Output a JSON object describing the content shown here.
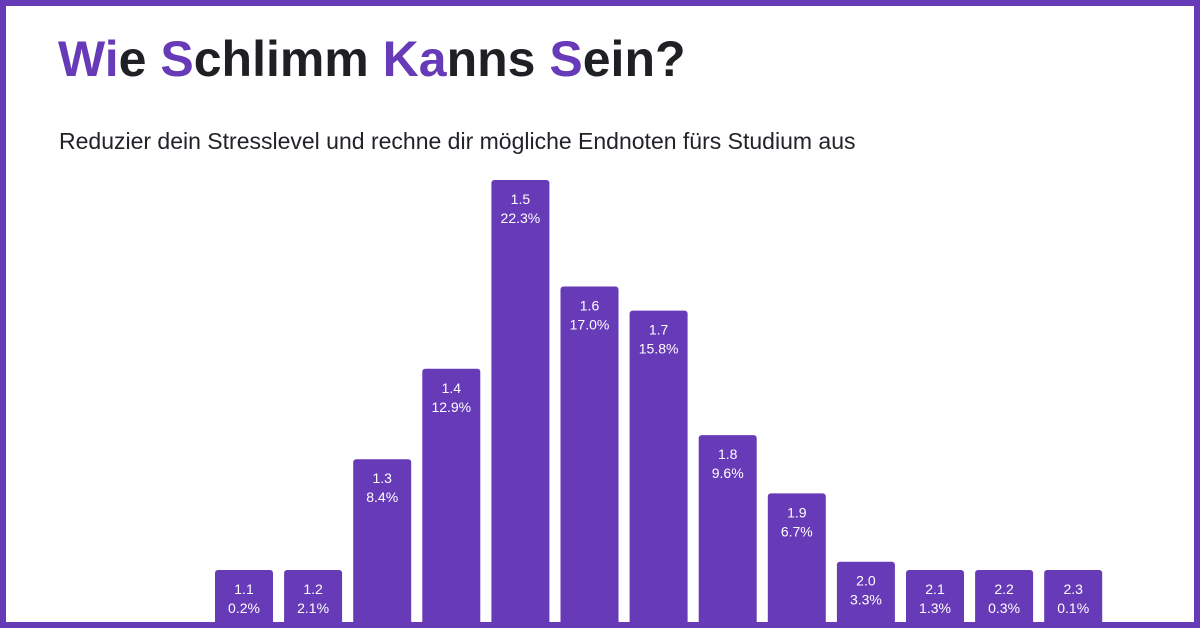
{
  "colors": {
    "accent": "#673ab7",
    "bar": "#673ab7",
    "text": "#1f2024",
    "background": "#ffffff"
  },
  "header": {
    "title_parts": [
      {
        "text": "Wi",
        "highlight": true
      },
      {
        "text": "e ",
        "highlight": false
      },
      {
        "text": "S",
        "highlight": true
      },
      {
        "text": "chlimm ",
        "highlight": false
      },
      {
        "text": "Ka",
        "highlight": true
      },
      {
        "text": "nns ",
        "highlight": false
      },
      {
        "text": "S",
        "highlight": true
      },
      {
        "text": "ein?",
        "highlight": false
      }
    ],
    "subtitle": "Reduzier dein Stresslevel und rechne dir mögliche Endnoten fürs Studium aus"
  },
  "chart_data": {
    "type": "bar",
    "title": "Wie Schlimm Kanns Sein?",
    "xlabel": "",
    "ylabel": "",
    "categories": [
      "1.1",
      "1.2",
      "1.3",
      "1.4",
      "1.5",
      "1.6",
      "1.7",
      "1.8",
      "1.9",
      "2.0",
      "2.1",
      "2.2",
      "2.3"
    ],
    "values": [
      0.2,
      2.1,
      8.4,
      12.9,
      22.3,
      17.0,
      15.8,
      9.6,
      6.7,
      3.3,
      1.3,
      0.3,
      0.1
    ],
    "value_labels": [
      "0.2%",
      "2.1%",
      "8.4%",
      "12.9%",
      "22.3%",
      "17.0%",
      "15.8%",
      "9.6%",
      "6.7%",
      "3.3%",
      "1.3%",
      "0.3%",
      "0.1%"
    ],
    "ylim": [
      0,
      22.3
    ],
    "grid": false,
    "legend": "none"
  }
}
